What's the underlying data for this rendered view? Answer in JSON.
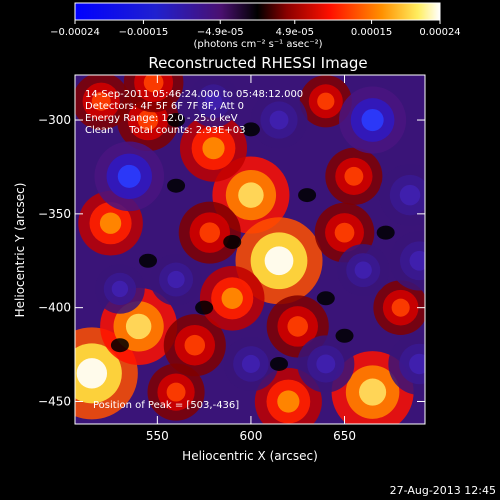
{
  "chart_data": {
    "type": "heatmap",
    "title": "Reconstructed RHESSI Image",
    "xlabel": "Heliocentric X (arcsec)",
    "ylabel": "Heliocentric Y (arcsec)",
    "xlim": [
      506,
      693
    ],
    "ylim": [
      -462,
      -276
    ],
    "xticks": [
      550,
      600,
      650
    ],
    "yticks": [
      -300,
      -350,
      -400,
      -450
    ],
    "colorbar": {
      "range": [
        -0.00024,
        0.00024
      ],
      "ticks": [
        "-0.00024",
        "-0.00015",
        "-4.9e-05",
        "4.9e-05",
        "0.00015",
        "0.00024"
      ],
      "unit_label": "(photons cm⁻² s⁻¹ asec⁻²)"
    },
    "annotations": [
      "14-Sep-2011 05:46:24.000 to 05:48:12.000",
      "Detectors: 4F 5F 6F 7F 8F, Att 0",
      "Energy Range: 12.0 - 25.0 keV",
      "Clean     Total counts: 2.93E+03"
    ],
    "peak_text": "Position of Peak = [503,-436]",
    "peak": [
      503,
      -436
    ],
    "intensity_blobs": [
      {
        "x": 600,
        "y": -340,
        "value": 0.00018
      },
      {
        "x": 615,
        "y": -375,
        "value": 0.00022
      },
      {
        "x": 580,
        "y": -315,
        "value": 0.00014
      },
      {
        "x": 545,
        "y": -300,
        "value": 0.00012
      },
      {
        "x": 520,
        "y": -290,
        "value": 0.0001
      },
      {
        "x": 525,
        "y": -355,
        "value": 0.00013
      },
      {
        "x": 515,
        "y": -435,
        "value": 0.00024
      },
      {
        "x": 540,
        "y": -410,
        "value": 0.00018
      },
      {
        "x": 570,
        "y": -420,
        "value": 0.00012
      },
      {
        "x": 560,
        "y": -445,
        "value": 0.0001
      },
      {
        "x": 625,
        "y": -410,
        "value": 0.00012
      },
      {
        "x": 650,
        "y": -360,
        "value": 0.00011
      },
      {
        "x": 655,
        "y": -330,
        "value": 0.0001
      },
      {
        "x": 640,
        "y": -290,
        "value": 8e-05
      },
      {
        "x": 590,
        "y": -395,
        "value": 0.00013
      },
      {
        "x": 665,
        "y": -445,
        "value": 0.0002
      },
      {
        "x": 680,
        "y": -400,
        "value": 9e-05
      },
      {
        "x": 620,
        "y": -450,
        "value": 0.00014
      },
      {
        "x": 548,
        "y": -280,
        "value": 0.00011
      },
      {
        "x": 578,
        "y": -360,
        "value": 0.00012
      },
      {
        "x": 535,
        "y": -330,
        "value": -0.00015
      },
      {
        "x": 615,
        "y": -300,
        "value": -0.0001
      },
      {
        "x": 665,
        "y": -300,
        "value": -0.00014
      },
      {
        "x": 685,
        "y": -340,
        "value": -0.00012
      },
      {
        "x": 690,
        "y": -375,
        "value": -0.00011
      },
      {
        "x": 560,
        "y": -385,
        "value": -8e-05
      },
      {
        "x": 600,
        "y": -430,
        "value": -9e-05
      },
      {
        "x": 640,
        "y": -430,
        "value": -0.0001
      },
      {
        "x": 690,
        "y": -430,
        "value": -0.00012
      },
      {
        "x": 580,
        "y": -290,
        "value": -8e-05
      },
      {
        "x": 530,
        "y": -390,
        "value": -7e-05
      },
      {
        "x": 660,
        "y": -380,
        "value": -8e-05
      }
    ]
  },
  "footer": {
    "timestamp": "27-Aug-2013 12:45"
  }
}
